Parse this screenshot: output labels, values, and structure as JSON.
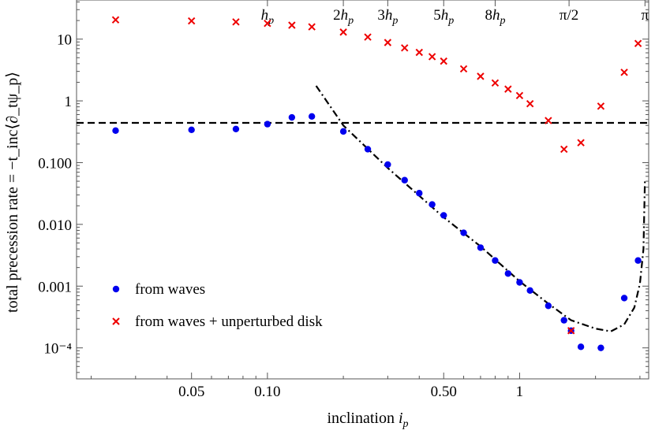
{
  "chart_data": {
    "type": "scatter",
    "xlabel_main": "inclination ",
    "xlabel_var": "i",
    "xlabel_sub": "p",
    "ylabel": "total precession rate = −t_inc⟨∂_tψ_p⟩",
    "x_scale": "log",
    "y_scale": "log",
    "xlim": [
      0.0175,
      3.25
    ],
    "ylim": [
      3.15e-05,
      43
    ],
    "x_ticks": [
      {
        "value": 0.05,
        "label": "0.05"
      },
      {
        "value": 0.1,
        "label": "0.10"
      },
      {
        "value": 0.5,
        "label": "0.50"
      },
      {
        "value": 1,
        "label": "1"
      }
    ],
    "y_ticks": [
      {
        "value": 10,
        "label": "10"
      },
      {
        "value": 1,
        "label": "1"
      },
      {
        "value": 0.1,
        "label": "0.100"
      },
      {
        "value": 0.01,
        "label": "0.010"
      },
      {
        "value": 0.001,
        "label": "0.001"
      },
      {
        "value": 0.0001,
        "label": "10⁻⁴"
      }
    ],
    "top_ticks": [
      {
        "value": 0.1,
        "label_pre": "",
        "label_var": "h",
        "label_sub": "p"
      },
      {
        "value": 0.2,
        "label_pre": "2",
        "label_var": "h",
        "label_sub": "p"
      },
      {
        "value": 0.3,
        "label_pre": "3",
        "label_var": "h",
        "label_sub": "p"
      },
      {
        "value": 0.5,
        "label_pre": "5",
        "label_var": "h",
        "label_sub": "p"
      },
      {
        "value": 0.8,
        "label_pre": "8",
        "label_var": "h",
        "label_sub": "p"
      },
      {
        "value": 1.5708,
        "label_pre": "π/2",
        "label_var": "",
        "label_sub": ""
      },
      {
        "value": 3.1416,
        "label_pre": "π",
        "label_var": "",
        "label_sub": ""
      }
    ],
    "series": [
      {
        "name": "from waves",
        "marker": "circle",
        "color": "#0000ee",
        "points": [
          [
            0.025,
            0.33
          ],
          [
            0.05,
            0.34
          ],
          [
            0.075,
            0.35
          ],
          [
            0.1,
            0.42
          ],
          [
            0.125,
            0.54
          ],
          [
            0.15,
            0.56
          ],
          [
            0.2,
            0.32
          ],
          [
            0.25,
            0.165
          ],
          [
            0.3,
            0.093
          ],
          [
            0.35,
            0.052
          ],
          [
            0.4,
            0.032
          ],
          [
            0.45,
            0.021
          ],
          [
            0.5,
            0.014
          ],
          [
            0.6,
            0.0073
          ],
          [
            0.7,
            0.0042
          ],
          [
            0.8,
            0.0026
          ],
          [
            0.9,
            0.0016
          ],
          [
            1.0,
            0.00115
          ],
          [
            1.1,
            0.00085
          ],
          [
            1.3,
            0.00048
          ],
          [
            1.5,
            0.00028
          ],
          [
            1.6,
            0.00019
          ],
          [
            1.75,
            0.000104
          ],
          [
            2.1,
            0.0001
          ],
          [
            2.6,
            0.00064
          ],
          [
            2.95,
            0.0026
          ]
        ]
      },
      {
        "name": "from waves + unperturbed disk",
        "marker": "cross",
        "color": "#ee0000",
        "points": [
          [
            0.025,
            20.5
          ],
          [
            0.05,
            19.7
          ],
          [
            0.075,
            19.0
          ],
          [
            0.1,
            18.0
          ],
          [
            0.125,
            16.8
          ],
          [
            0.15,
            15.8
          ],
          [
            0.2,
            13.0
          ],
          [
            0.25,
            10.8
          ],
          [
            0.3,
            8.8
          ],
          [
            0.35,
            7.2
          ],
          [
            0.4,
            6.1
          ],
          [
            0.45,
            5.2
          ],
          [
            0.5,
            4.4
          ],
          [
            0.6,
            3.3
          ],
          [
            0.7,
            2.5
          ],
          [
            0.8,
            1.95
          ],
          [
            0.9,
            1.55
          ],
          [
            1.0,
            1.22
          ],
          [
            1.1,
            0.9
          ],
          [
            1.3,
            0.48
          ],
          [
            1.5,
            0.165
          ],
          [
            1.6,
            0.00019
          ],
          [
            1.75,
            0.21
          ],
          [
            2.1,
            0.82
          ],
          [
            2.6,
            2.9
          ],
          [
            2.95,
            8.5
          ]
        ]
      }
    ],
    "reference_lines": [
      {
        "style": "dashed",
        "kind": "horizontal",
        "y": 0.44
      },
      {
        "style": "dash-dot",
        "kind": "curve",
        "points": [
          [
            0.156,
            1.75
          ],
          [
            0.2,
            0.4
          ],
          [
            0.3,
            0.082
          ],
          [
            0.5,
            0.013
          ],
          [
            0.7,
            0.0044
          ],
          [
            1.0,
            0.0012
          ],
          [
            1.3,
            0.00052
          ],
          [
            1.6,
            0.00028
          ],
          [
            2.0,
            0.000205
          ],
          [
            2.3,
            0.000185
          ],
          [
            2.6,
            0.00024
          ],
          [
            2.85,
            0.00045
          ],
          [
            3.0,
            0.0011
          ],
          [
            3.1,
            0.004
          ],
          [
            3.14,
            0.05
          ]
        ]
      }
    ],
    "legend_position": "bottom-left",
    "grid": false
  }
}
